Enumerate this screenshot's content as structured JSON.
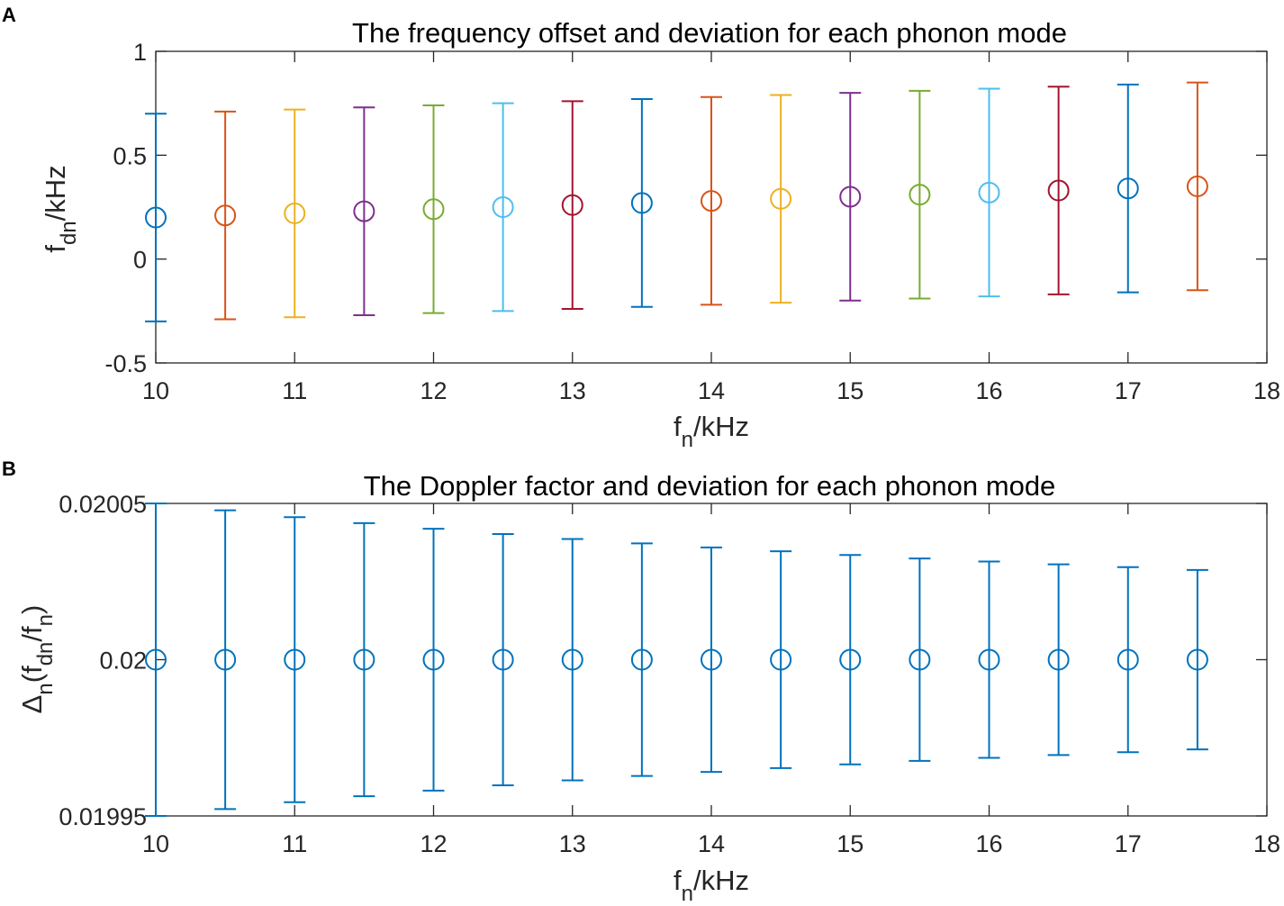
{
  "chart_data": [
    {
      "panel": "A",
      "type": "scatter",
      "title": "The frequency offset and deviation for each phonon mode",
      "xlabel": {
        "main": "f",
        "sub": "n",
        "rest": "/kHz"
      },
      "ylabel": {
        "main": "f",
        "sub": "dn",
        "rest": "/kHz"
      },
      "xlim": [
        10,
        18
      ],
      "ylim": [
        -0.5,
        1
      ],
      "xticks": [
        10,
        11,
        12,
        13,
        14,
        15,
        16,
        17,
        18
      ],
      "yticks": [
        -0.5,
        0,
        0.5,
        1
      ],
      "ytick_labels": [
        "-0.5",
        "0",
        "0.5",
        "1"
      ],
      "x": [
        10,
        10.5,
        11,
        11.5,
        12,
        12.5,
        13,
        13.5,
        14,
        14.5,
        15,
        15.5,
        16,
        16.5,
        17,
        17.5
      ],
      "y": [
        0.2,
        0.21,
        0.22,
        0.23,
        0.24,
        0.25,
        0.26,
        0.27,
        0.28,
        0.29,
        0.3,
        0.31,
        0.32,
        0.33,
        0.34,
        0.35
      ],
      "error": [
        0.5,
        0.5,
        0.5,
        0.5,
        0.5,
        0.5,
        0.5,
        0.5,
        0.5,
        0.5,
        0.5,
        0.5,
        0.5,
        0.5,
        0.5,
        0.5
      ],
      "colors": [
        "#0072BD",
        "#D95319",
        "#EDB120",
        "#7E2F8E",
        "#77AC30",
        "#4DBEEE",
        "#A2142F",
        "#0072BD",
        "#D95319",
        "#EDB120",
        "#7E2F8E",
        "#77AC30",
        "#4DBEEE",
        "#A2142F",
        "#0072BD",
        "#D95319"
      ],
      "marker": "circle",
      "grid": false
    },
    {
      "panel": "B",
      "type": "scatter",
      "title": "The Doppler factor and deviation for each phonon mode",
      "xlabel": {
        "main": "f",
        "sub": "n",
        "rest": "/kHz"
      },
      "ylabel": {
        "prefix": "Δ",
        "sub1": "n",
        "mid": "(f",
        "sub2": "dn",
        "mid2": "/f",
        "sub3": "n",
        "end": ")"
      },
      "xlim": [
        10,
        18
      ],
      "ylim": [
        0.01995,
        0.02005
      ],
      "xticks": [
        10,
        11,
        12,
        13,
        14,
        15,
        16,
        17,
        18
      ],
      "yticks": [
        0.01995,
        0.02,
        0.02005
      ],
      "ytick_labels": [
        "0.01995",
        "0.02",
        "0.02005"
      ],
      "x": [
        10,
        10.5,
        11,
        11.5,
        12,
        12.5,
        13,
        13.5,
        14,
        14.5,
        15,
        15.5,
        16,
        16.5,
        17,
        17.5
      ],
      "y": [
        0.02,
        0.02,
        0.02,
        0.02,
        0.02,
        0.02,
        0.02,
        0.02,
        0.02,
        0.02,
        0.02,
        0.02,
        0.02,
        0.02,
        0.02,
        0.02
      ],
      "error": [
        5e-05,
        4.78e-05,
        4.56e-05,
        4.37e-05,
        4.19e-05,
        4.02e-05,
        3.86e-05,
        3.72e-05,
        3.59e-05,
        3.47e-05,
        3.35e-05,
        3.24e-05,
        3.14e-05,
        3.05e-05,
        2.96e-05,
        2.87e-05
      ],
      "colors": [
        "#0072BD"
      ],
      "marker": "circle",
      "grid": false
    }
  ]
}
